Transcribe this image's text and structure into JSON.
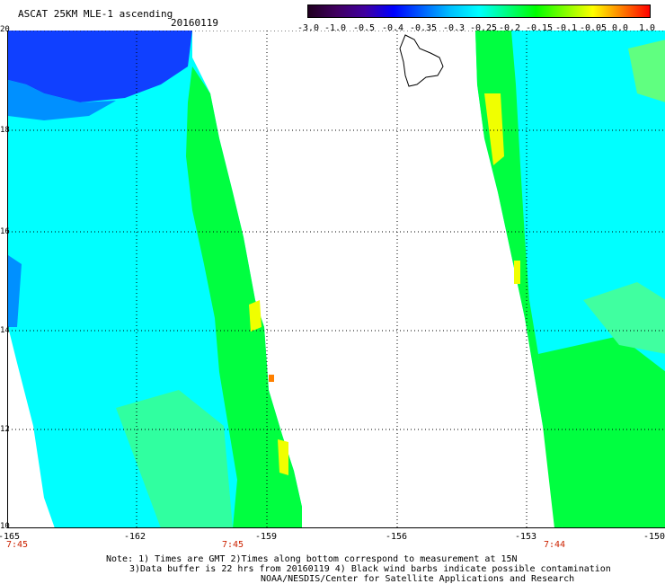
{
  "header": {
    "title": "ASCAT 25KM MLE-1 ascending",
    "date": "20160119"
  },
  "colorbar": {
    "ticks": [
      "-3.0",
      "-1.0",
      "-0.5",
      "-0.4",
      "-0.35",
      "-0.3",
      "-0.25",
      "-0.2",
      "-0.15",
      "-0.1",
      "-0.05",
      "0.0",
      "1.0"
    ],
    "colors": [
      "#200020",
      "#400060",
      "#4000a0",
      "#0000ff",
      "#0060ff",
      "#00c0ff",
      "#00ffff",
      "#00ff80",
      "#00ff00",
      "#80ff00",
      "#ffff00",
      "#ff8000",
      "#ff0000"
    ]
  },
  "map": {
    "lat_labels": [
      "20",
      "18",
      "16",
      "14",
      "12",
      "10"
    ],
    "lon_labels": [
      "-165",
      "-162",
      "-159",
      "-156",
      "-153",
      "-150"
    ],
    "time_labels": [
      "7:45",
      "7:45",
      "7:44"
    ],
    "colors": {
      "water_low": "#0000ff",
      "cyan": "#00ffff",
      "cyan2": "#20f0ff",
      "green": "#00ff40",
      "yellow": "#f0ff00",
      "orange": "#ff8000"
    }
  },
  "footer": {
    "note1": "Note: 1) Times are GMT 2)Times along bottom correspond to measurement at 15N",
    "note2": "3)Data buffer is 22 hrs from 20160119 4) Black wind barbs indicate possible contamination",
    "note3": "NOAA/NESDIS/Center for Satellite Applications and Research"
  }
}
